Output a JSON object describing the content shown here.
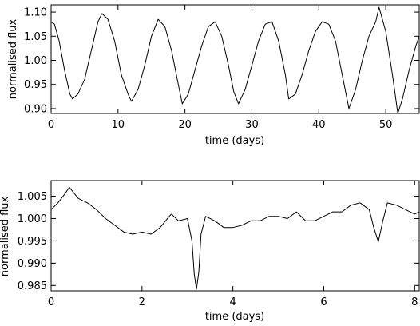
{
  "chart_data": [
    {
      "type": "line",
      "title": "",
      "xlabel": "time (days)",
      "ylabel": "normalised flux",
      "xlim": [
        0,
        55
      ],
      "ylim": [
        0.89,
        1.115
      ],
      "xticks": [
        0,
        10,
        20,
        30,
        40,
        50
      ],
      "xtick_labels": [
        "0",
        "10",
        "20",
        "30",
        "40",
        "50"
      ],
      "yticks": [
        0.9,
        0.95,
        1.0,
        1.05,
        1.1
      ],
      "ytick_labels": [
        "0.90",
        "0.95",
        "1.00",
        "1.05",
        "1.10"
      ],
      "grid": false,
      "series": [
        {
          "x": [
            0,
            0.5,
            1.2,
            2.0,
            2.8,
            3.2,
            4.0,
            5.0,
            6.0,
            7.0,
            7.6,
            8.5,
            9.5,
            10.5,
            11.5,
            12.0,
            13.0,
            14.0,
            15.0,
            16.0,
            17.0,
            18.0,
            19.0,
            19.6,
            20.5,
            21.5,
            22.5,
            23.5,
            24.5,
            25.5,
            26.5,
            27.3,
            28.0,
            29.0,
            30.0,
            31.0,
            32.0,
            33.0,
            34.0,
            35.0,
            35.5,
            36.5,
            37.5,
            38.5,
            39.5,
            40.5,
            41.5,
            42.5,
            43.5,
            44.5,
            45.5,
            46.5,
            47.5,
            48.5,
            49.0,
            50.0,
            51.0,
            51.8,
            52.5,
            53.5,
            54.5,
            55.0
          ],
          "y": [
            1.08,
            1.075,
            1.04,
            0.98,
            0.93,
            0.92,
            0.93,
            0.96,
            1.02,
            1.08,
            1.097,
            1.085,
            1.04,
            0.97,
            0.93,
            0.915,
            0.94,
            0.99,
            1.05,
            1.085,
            1.07,
            1.02,
            0.95,
            0.91,
            0.93,
            0.98,
            1.03,
            1.07,
            1.08,
            1.05,
            0.99,
            0.935,
            0.91,
            0.94,
            0.99,
            1.04,
            1.075,
            1.08,
            1.04,
            0.97,
            0.92,
            0.93,
            0.97,
            1.02,
            1.06,
            1.08,
            1.075,
            1.04,
            0.97,
            0.9,
            0.94,
            1.0,
            1.05,
            1.08,
            1.11,
            1.06,
            0.97,
            0.89,
            0.92,
            0.98,
            1.03,
            1.05
          ]
        }
      ]
    },
    {
      "type": "line",
      "title": "",
      "xlabel": "time (days)",
      "ylabel": "normalised flux",
      "xlim": [
        0,
        8.1
      ],
      "ylim": [
        0.9838,
        1.0085
      ],
      "xticks": [
        0,
        2,
        4,
        6,
        8
      ],
      "xtick_labels": [
        "0",
        "2",
        "4",
        "6",
        "8"
      ],
      "yticks": [
        0.985,
        0.99,
        0.995,
        1.0,
        1.005
      ],
      "ytick_labels": [
        "0.985",
        "0.990",
        "0.995",
        "1.000",
        "1.005"
      ],
      "grid": false,
      "series": [
        {
          "x": [
            0,
            0.15,
            0.3,
            0.4,
            0.6,
            0.8,
            1.0,
            1.2,
            1.4,
            1.6,
            1.8,
            2.0,
            2.2,
            2.4,
            2.6,
            2.65,
            2.8,
            3.0,
            3.1,
            3.15,
            3.2,
            3.25,
            3.3,
            3.4,
            3.6,
            3.8,
            4.0,
            4.2,
            4.4,
            4.6,
            4.8,
            5.0,
            5.2,
            5.4,
            5.6,
            5.8,
            6.0,
            6.2,
            6.4,
            6.6,
            6.8,
            7.0,
            7.1,
            7.2,
            7.3,
            7.4,
            7.6,
            7.8,
            8.0,
            8.1
          ],
          "y": [
            1.002,
            1.0035,
            1.0055,
            1.007,
            1.0045,
            1.0035,
            1.002,
            1.0,
            0.9985,
            0.997,
            0.9965,
            0.997,
            0.9965,
            0.998,
            1.0005,
            1.001,
            0.9995,
            1.0,
            0.995,
            0.9875,
            0.9842,
            0.988,
            0.9965,
            1.0005,
            0.9995,
            0.998,
            0.998,
            0.9985,
            0.9995,
            0.9995,
            1.0005,
            1.0005,
            1.0,
            1.0015,
            0.9995,
            0.9995,
            1.0005,
            1.0015,
            1.0015,
            1.003,
            1.0035,
            1.002,
            0.998,
            0.9948,
            0.9995,
            1.0035,
            1.003,
            1.002,
            1.001,
            1.0015
          ]
        }
      ]
    }
  ]
}
